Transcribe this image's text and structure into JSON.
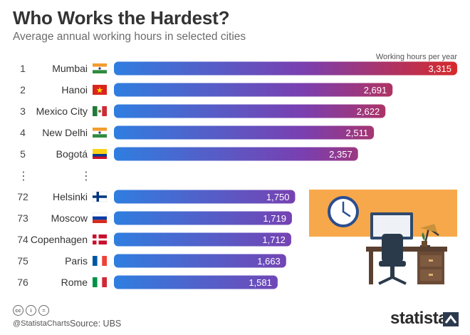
{
  "title": "Who Works the Hardest?",
  "subtitle": "Average annual working hours in selected cities",
  "chart_data": {
    "type": "bar",
    "orientation": "horizontal",
    "legend_label": "Working hours per year",
    "ranks": [
      "1",
      "2",
      "3",
      "4",
      "5",
      "72",
      "73",
      "74",
      "75",
      "76"
    ],
    "categories": [
      "Mumbai",
      "Hanoi",
      "Mexico City",
      "New Delhi",
      "Bogotá",
      "Helsinki",
      "Moscow",
      "Copenhagen",
      "Paris",
      "Rome"
    ],
    "values": [
      3315,
      2691,
      2622,
      2511,
      2357,
      1750,
      1719,
      1712,
      1663,
      1581
    ],
    "value_labels": [
      "3,315",
      "2,691",
      "2,622",
      "2,511",
      "2,357",
      "1,750",
      "1,719",
      "1,712",
      "1,663",
      "1,581"
    ],
    "flags": [
      "india-flag",
      "vietnam-flag",
      "mexico-flag",
      "india-flag",
      "colombia-flag",
      "finland-flag",
      "russia-flag",
      "denmark-flag",
      "france-flag",
      "italy-flag"
    ],
    "gap_marker": "⋮",
    "colors": {
      "bar_start": "#2f7ee0",
      "bar_mid": "#7a3fb0",
      "bar_end": "#d62a2a",
      "label_text": "#ffffff"
    }
  },
  "illustration": {
    "background": "#f7a84a",
    "icons": [
      "clock-icon",
      "monitor-icon",
      "office-chair-icon",
      "desk-icon",
      "desk-lamp-icon",
      "plant-icon"
    ]
  },
  "footer": {
    "license_icons": [
      "cc-icon",
      "by-icon",
      "nd-icon"
    ],
    "license_glyphs": [
      "cc",
      "i",
      "="
    ],
    "handle": "@StatistaCharts",
    "source": "Source: UBS",
    "brand": "statista"
  }
}
